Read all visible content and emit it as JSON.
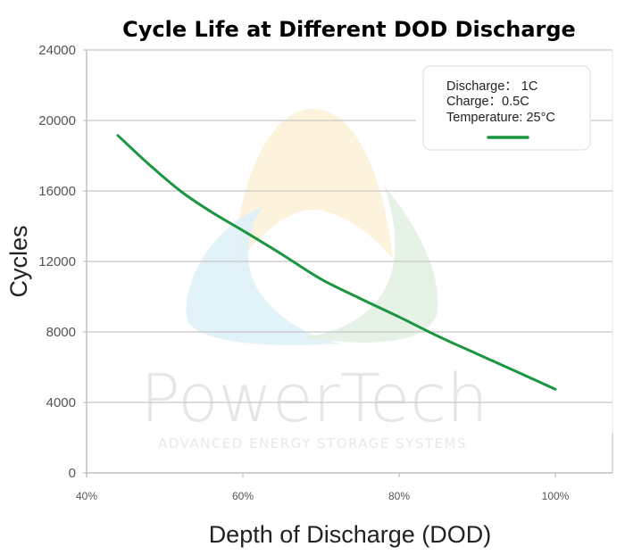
{
  "chart_data": {
    "type": "line",
    "title": "Cycle Life at Different DOD Discharge",
    "xlabel": "Depth of Discharge (DOD)",
    "ylabel": "Cycles",
    "xlim": [
      40,
      106
    ],
    "ylim": [
      0,
      24000
    ],
    "x_ticks": [
      40,
      60,
      80,
      100
    ],
    "x_tick_labels": [
      "40%",
      "60%",
      "80%",
      "100%"
    ],
    "y_ticks": [
      0,
      4000,
      8000,
      12000,
      16000,
      20000,
      24000
    ],
    "y_tick_labels": [
      "0",
      "4000",
      "8000",
      "12000",
      "16000",
      "20000",
      "24000"
    ],
    "grid": "horizontal",
    "legend": {
      "placement": "top-right",
      "lines": [
        "Discharge： 1C",
        "Charge：0.5C",
        "Temperature: 25°C"
      ]
    },
    "series": [
      {
        "name": "Discharge 1C / Charge 0.5C / 25°C",
        "color": "#1a9641",
        "x": [
          44,
          48,
          52,
          56,
          60,
          65,
          70,
          75,
          80,
          85,
          90,
          95,
          100
        ],
        "y": [
          19150,
          17500,
          16000,
          14800,
          13750,
          12400,
          11000,
          9900,
          8850,
          7750,
          6750,
          5750,
          4750
        ]
      }
    ],
    "watermark": {
      "brand": "PowerTech",
      "tagline": "ADVANCED ENERGY STORAGE SYSTEMS",
      "colors": [
        "#fdf1d8",
        "#dff1f8",
        "#e3f1e2"
      ]
    }
  }
}
